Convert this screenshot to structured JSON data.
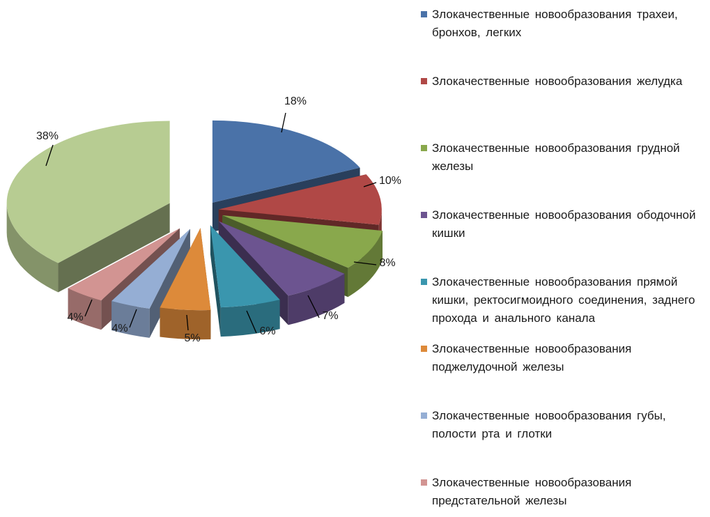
{
  "chart_data": {
    "type": "pie",
    "style": "3d-exploded",
    "slices": [
      {
        "label": "Злокачественные новообразования трахеи, бронхов, легких",
        "value": 18,
        "value_label": "18%",
        "color": "#4a72a8"
      },
      {
        "label": "Злокачественные новообразования желудка",
        "value": 10,
        "value_label": "10%",
        "color": "#b04846"
      },
      {
        "label": "Злокачественные новообразования грудной железы",
        "value": 8,
        "value_label": "8%",
        "color": "#89a84c"
      },
      {
        "label": "Злокачественные новообразования ободочной кишки",
        "value": 7,
        "value_label": "7%",
        "color": "#6c5490"
      },
      {
        "label": "Злокачественные новообразования прямой кишки, ректосигмоидного соединения, заднего прохода и анального канала",
        "value": 6,
        "value_label": "6%",
        "color": "#3a96ae"
      },
      {
        "label": "Злокачественные новообразования поджелудочной железы",
        "value": 5,
        "value_label": "5%",
        "color": "#dd8a3a"
      },
      {
        "label": "Злокачественные новообразования губы, полости рта и глотки",
        "value": 4,
        "value_label": "4%",
        "color": "#95aed4"
      },
      {
        "label": "Злокачественные новообразования предстательной железы",
        "value": 4,
        "value_label": "4%",
        "color": "#d29492"
      },
      {
        "label": "",
        "value": 38,
        "value_label": "38%",
        "color": "#b7cc92"
      }
    ],
    "legend_position": "right"
  }
}
